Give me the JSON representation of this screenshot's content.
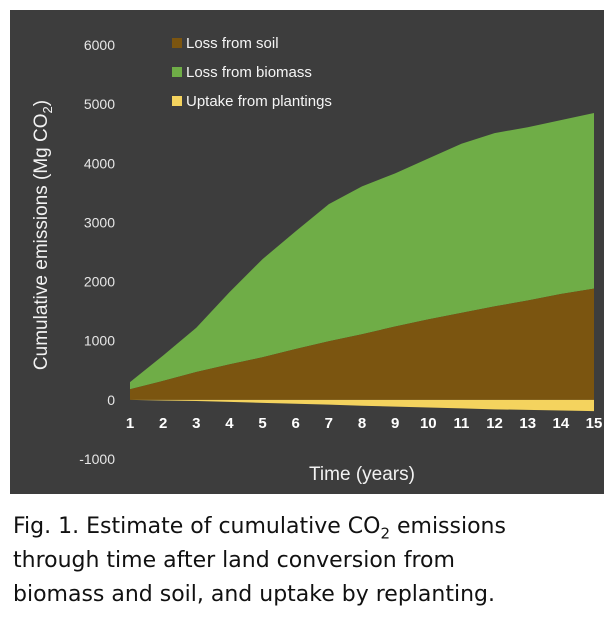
{
  "chart_data": {
    "type": "area",
    "xlabel": "Time (years)",
    "ylabel": "Cumulative emissions (Mg CO",
    "ylabel_sub": "2",
    "ylabel_end": ")",
    "x": [
      1,
      2,
      3,
      4,
      5,
      6,
      7,
      8,
      9,
      10,
      11,
      12,
      13,
      14,
      15
    ],
    "xlim": [
      1,
      15
    ],
    "ylim": [
      -1000,
      6000
    ],
    "yticks": [
      6000,
      5000,
      4000,
      3000,
      2000,
      1000,
      0,
      -1000
    ],
    "xticks": [
      "1",
      "2",
      "3",
      "4",
      "5",
      "6",
      "7",
      "8",
      "9",
      "10",
      "11",
      "12",
      "13",
      "14",
      "15"
    ],
    "stacked": true,
    "legend_position": "top-left",
    "series": [
      {
        "name": "Loss from soil",
        "color": "#7b5510",
        "values": [
          180,
          320,
          470,
          600,
          720,
          860,
          990,
          1110,
          1240,
          1360,
          1470,
          1580,
          1680,
          1790,
          1880
        ]
      },
      {
        "name": "Loss from biomass",
        "color": "#6fad47",
        "values": [
          120,
          430,
          750,
          1220,
          1660,
          1990,
          2320,
          2500,
          2590,
          2720,
          2860,
          2930,
          2930,
          2940,
          2970
        ]
      },
      {
        "name": "Uptake from plantings",
        "color": "#f4d35e",
        "values": [
          0,
          -10,
          -20,
          -35,
          -50,
          -65,
          -80,
          -100,
          -115,
          -130,
          -145,
          -160,
          -170,
          -180,
          -190
        ]
      }
    ]
  },
  "caption": {
    "line1_before": "Fig. 1. Estimate of cumulative CO",
    "line1_sub": "2",
    "line1_after": " emissions",
    "line2": "through time after land conversion from",
    "line3": "biomass and soil, and uptake by replanting."
  }
}
